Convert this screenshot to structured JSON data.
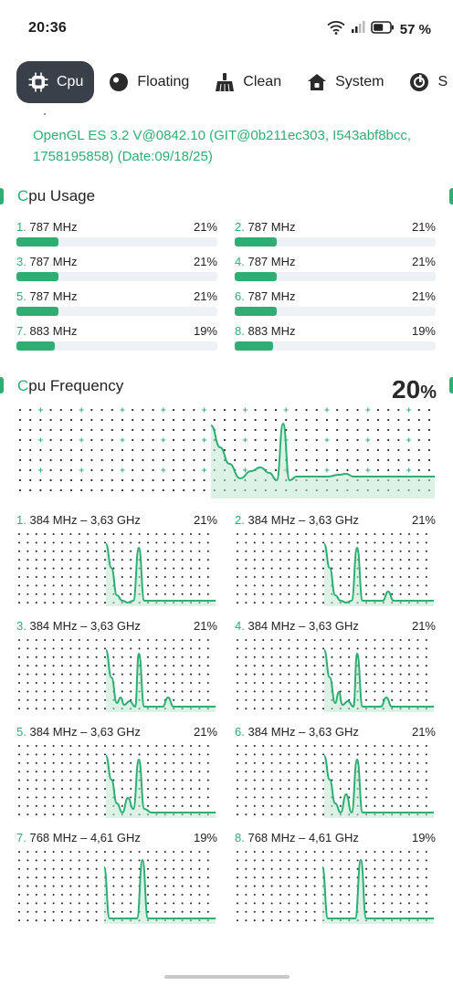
{
  "status": {
    "time": "20:36",
    "battery": "57 %"
  },
  "tabs": [
    {
      "label": "Cpu",
      "icon": "cpu-icon"
    },
    {
      "label": "Floating",
      "icon": "floating-icon"
    },
    {
      "label": "Clean",
      "icon": "broom-icon"
    },
    {
      "label": "System",
      "icon": "home-icon"
    },
    {
      "label": "S",
      "icon": "system-info-icon"
    }
  ],
  "gpu_info": "OpenGL ES 3.2 V@0842.10 (GIT@0b211ec303, I543abf8bcc, 1758195858) (Date:09/18/25)",
  "usage": {
    "title": "Cpu Usage",
    "cores": [
      {
        "num": "1.",
        "freq": "787 MHz",
        "pct": "21%",
        "fill": 0.21
      },
      {
        "num": "2.",
        "freq": "787 MHz",
        "pct": "21%",
        "fill": 0.21
      },
      {
        "num": "3.",
        "freq": "787 MHz",
        "pct": "21%",
        "fill": 0.21
      },
      {
        "num": "4.",
        "freq": "787 MHz",
        "pct": "21%",
        "fill": 0.21
      },
      {
        "num": "5.",
        "freq": "787 MHz",
        "pct": "21%",
        "fill": 0.21
      },
      {
        "num": "6.",
        "freq": "787 MHz",
        "pct": "21%",
        "fill": 0.21
      },
      {
        "num": "7.",
        "freq": "883 MHz",
        "pct": "19%",
        "fill": 0.19
      },
      {
        "num": "8.",
        "freq": "883 MHz",
        "pct": "19%",
        "fill": 0.19
      }
    ]
  },
  "frequency": {
    "title": "Cpu Frequency",
    "total_value": "20",
    "total_unit": "%",
    "cores": [
      {
        "num": "1.",
        "range": "384 MHz – 3,63 GHz",
        "pct": "21%"
      },
      {
        "num": "2.",
        "range": "384 MHz – 3,63 GHz",
        "pct": "21%"
      },
      {
        "num": "3.",
        "range": "384 MHz – 3,63 GHz",
        "pct": "21%"
      },
      {
        "num": "4.",
        "range": "384 MHz – 3,63 GHz",
        "pct": "21%"
      },
      {
        "num": "5.",
        "range": "384 MHz – 3,63 GHz",
        "pct": "21%"
      },
      {
        "num": "6.",
        "range": "384 MHz – 3,63 GHz",
        "pct": "21%"
      },
      {
        "num": "7.",
        "range": "768 MHz – 4,61 GHz",
        "pct": "19%"
      },
      {
        "num": "8.",
        "range": "768 MHz – 4,61 GHz",
        "pct": "19%"
      }
    ]
  },
  "colors": {
    "accent": "#2fae73",
    "accent_soft": "#bfe8d3",
    "track": "#eef1f5",
    "dots": "#2b2b2b",
    "tab_active": "#39404a"
  }
}
